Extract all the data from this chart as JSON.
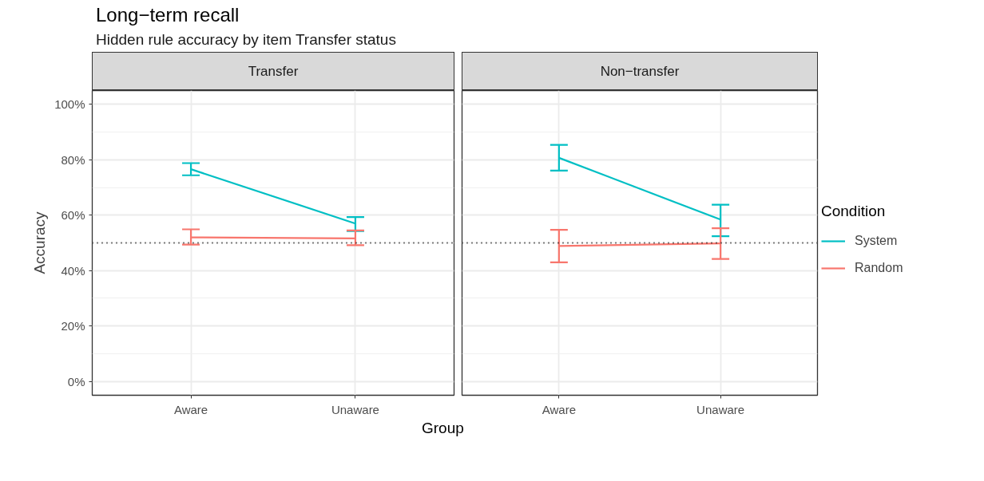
{
  "chart_data": [
    {
      "type": "line",
      "title": "Transfer",
      "annotations": [
        "Long−term recall",
        "Hidden rule accuracy by item Transfer status"
      ],
      "xlabel": "Group",
      "ylabel": "Accuracy",
      "categories": [
        "Aware",
        "Unaware"
      ],
      "series": [
        {
          "color": "#00bfc4",
          "values": [
            76.6,
            57.0
          ],
          "errors": [
            [
              74.4,
              78.8
            ],
            [
              54.3,
              59.3
            ]
          ]
        },
        {
          "color": "#f8766d",
          "values": [
            52.0,
            51.6
          ],
          "errors": [
            [
              49.4,
              54.9
            ],
            [
              49.2,
              54.5
            ]
          ]
        }
      ],
      "ylim": [
        -5,
        105
      ],
      "yticks": [
        {
          "value": 0,
          "label": "0%"
        },
        {
          "value": 20,
          "label": "20%"
        },
        {
          "value": 40,
          "label": "40%"
        },
        {
          "value": 60,
          "label": "60%"
        },
        {
          "value": 80,
          "label": "80%"
        },
        {
          "value": 100,
          "label": "100%"
        }
      ],
      "ref_lines": [
        {
          "axis": "y",
          "value": 50,
          "label": null,
          "color": "#000000",
          "line_style": "dotted"
        }
      ],
      "grid": true,
      "legend": false,
      "line_style": "solid",
      "marker": "none"
    },
    {
      "type": "line",
      "title": "Non−transfer",
      "legend_title": "Condition",
      "categories": [
        "Aware",
        "Unaware"
      ],
      "series": [
        {
          "name": "System",
          "color": "#00bfc4",
          "values": [
            80.7,
            58.4
          ],
          "errors": [
            [
              76.1,
              85.4
            ],
            [
              52.4,
              63.8
            ]
          ]
        },
        {
          "name": "Random",
          "color": "#f8766d",
          "values": [
            48.9,
            49.8
          ],
          "errors": [
            [
              43.0,
              54.7
            ],
            [
              44.2,
              55.3
            ]
          ]
        }
      ],
      "ylim": [
        -5,
        105
      ],
      "yticks": [
        0,
        20,
        40,
        60,
        80,
        100
      ],
      "ref_lines": [
        {
          "axis": "y",
          "value": 50,
          "label": null,
          "color": "#000000",
          "line_style": "dotted"
        }
      ],
      "grid": true,
      "legend": "right",
      "tick_labels": "x",
      "line_style": "solid",
      "marker": "none"
    }
  ]
}
